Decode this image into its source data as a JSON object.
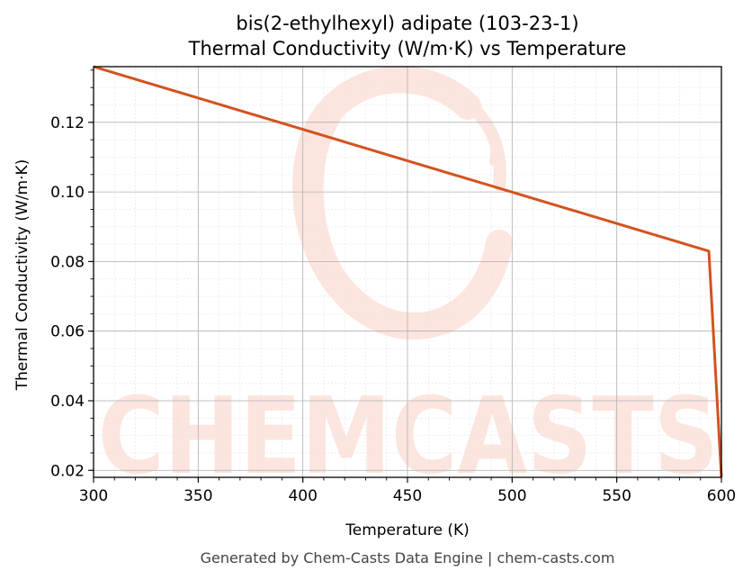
{
  "chart_data": {
    "type": "line",
    "title": "bis(2-ethylhexyl) adipate (103-23-1)",
    "subtitle": "Thermal Conductivity (W/m·K) vs Temperature",
    "xlabel": "Temperature (K)",
    "ylabel": "Thermal Conductivity (W/m·K)",
    "xlim": [
      300,
      600
    ],
    "ylim": [
      0.018,
      0.136
    ],
    "xticks": [
      300,
      350,
      400,
      450,
      500,
      550,
      600
    ],
    "xtick_labels": [
      "300",
      "350",
      "400",
      "450",
      "500",
      "550",
      "600"
    ],
    "yticks": [
      0.02,
      0.04,
      0.06,
      0.08,
      0.1,
      0.12
    ],
    "ytick_labels": [
      "0.02",
      "0.04",
      "0.06",
      "0.08",
      "0.10",
      "0.12"
    ],
    "grid": true,
    "series": [
      {
        "color": "#d4521e",
        "x": [
          300,
          594,
          600
        ],
        "y": [
          0.136,
          0.083,
          0.018
        ]
      }
    ]
  },
  "watermark": {
    "text": "CHEMCASTS",
    "color": "#fbd5cb"
  },
  "footer": "Generated by Chem-Casts Data Engine | chem-casts.com"
}
